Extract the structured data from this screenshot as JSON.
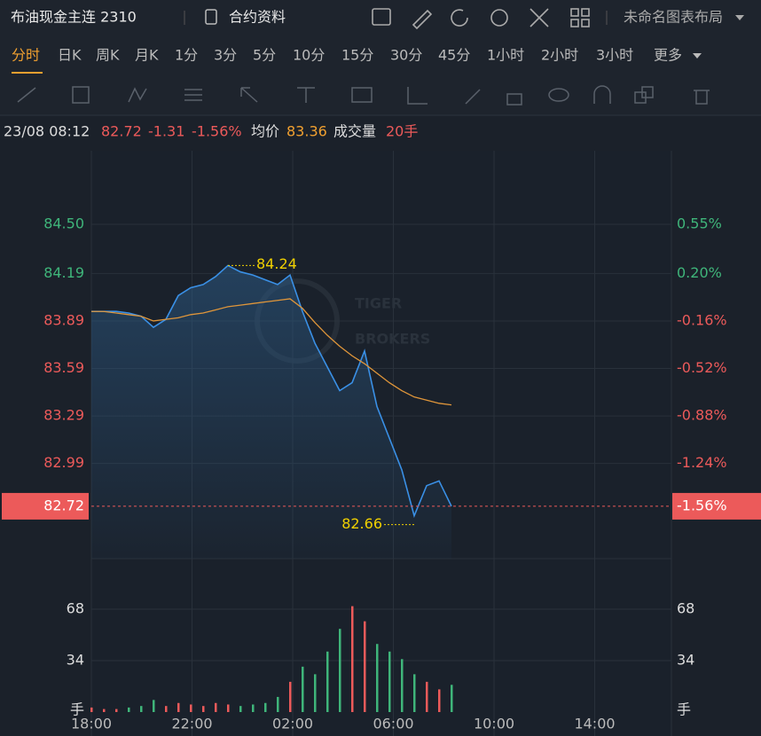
{
  "header": {
    "title": "布油现金主连 2310",
    "info_link": "合约资料",
    "layout_name": "未命名图表布局"
  },
  "tabs": [
    "分时",
    "日K",
    "周K",
    "月K",
    "1分",
    "3分",
    "5分",
    "10分",
    "15分",
    "30分",
    "45分",
    "1小时",
    "2小时",
    "3小时",
    "更多"
  ],
  "info_bar": {
    "time": "23/08 08:12",
    "price": "82.72",
    "change": "-1.31",
    "change_pct": "-1.56%",
    "avg_label": "均价",
    "avg": "83.36",
    "volume_label": "成交量",
    "volume": "20手"
  },
  "watermark": [
    "TIGER",
    "BROKERS"
  ],
  "price_axis": {
    "ticks": [
      {
        "value": 84.5,
        "label": "84.50"
      },
      84.19,
      83.89,
      83.59,
      83.29,
      82.99
    ],
    "pct_labels": [
      "0.55%",
      "0.20%",
      "-0.16%",
      "-0.52%",
      "-0.88%",
      "-1.24%"
    ],
    "last": 82.72,
    "last_pct": "-1.56%"
  },
  "price": {
    "values": [
      83.95,
      83.95,
      83.95,
      83.94,
      83.92,
      83.85,
      83.9,
      84.05,
      84.1,
      84.12,
      84.17,
      84.24,
      84.2,
      84.18,
      84.15,
      84.12,
      84.18,
      83.95,
      83.75,
      83.6,
      83.45,
      83.5,
      83.7,
      83.35,
      83.15,
      82.95,
      82.66,
      82.85,
      82.88,
      82.72
    ]
  },
  "average": {
    "values": [
      83.95,
      83.95,
      83.94,
      83.93,
      83.92,
      83.89,
      83.9,
      83.91,
      83.93,
      83.94,
      83.96,
      83.98,
      83.99,
      84.0,
      84.01,
      84.02,
      84.03,
      83.97,
      83.88,
      83.8,
      83.73,
      83.67,
      83.62,
      83.56,
      83.5,
      83.45,
      83.41,
      83.39,
      83.37,
      83.36
    ]
  },
  "volume": {
    "values": [
      3,
      2,
      2,
      3,
      4,
      8,
      4,
      6,
      5,
      4,
      6,
      5,
      4,
      5,
      6,
      10,
      20,
      30,
      25,
      40,
      55,
      70,
      60,
      45,
      40,
      35,
      25,
      20,
      15,
      18
    ],
    "ticks": [
      68,
      34
    ],
    "unit": "手"
  },
  "time_axis": [
    "18:00",
    "22:00",
    "02:00",
    "06:00",
    "10:00",
    "14:00"
  ]
}
